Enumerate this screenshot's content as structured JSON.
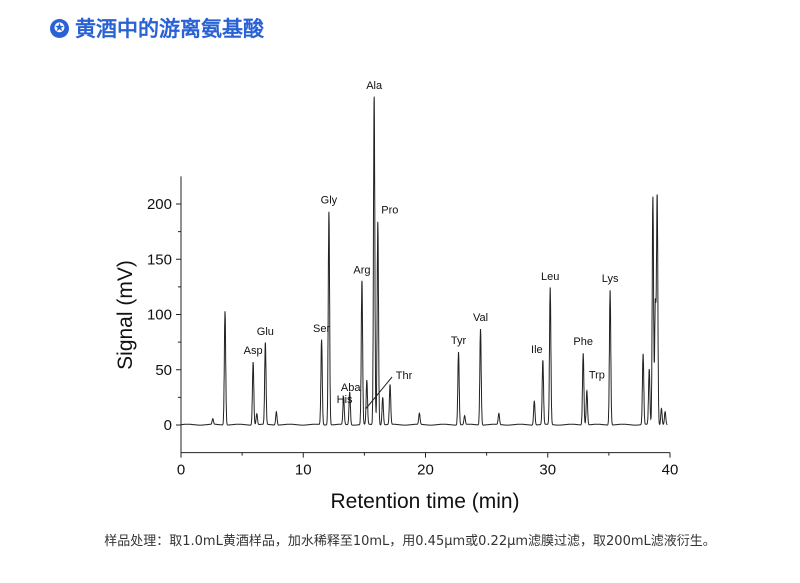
{
  "header": {
    "icon": "star-circle-icon",
    "title": "黄酒中的游离氨基酸"
  },
  "caption": "样品处理：取1.0mL黄酒样品，加水稀释至10mL，用0.45μm或0.22μm滤膜过滤，取200mL滤液衍生。",
  "chart_data": {
    "type": "line",
    "xlabel": "Retention time (min)",
    "ylabel": "Signal (mV)",
    "xlim": [
      0,
      40
    ],
    "ylim": [
      -25,
      225
    ],
    "xticks": [
      0,
      10,
      20,
      30,
      40
    ],
    "yticks": [
      0,
      50,
      100,
      150,
      200
    ],
    "grid": false,
    "line_color": "#222222",
    "peaks": [
      {
        "t": 2.6,
        "v": 5
      },
      {
        "t": 3.6,
        "v": 103
      },
      {
        "t": 5.9,
        "v": 57,
        "label": "Asp"
      },
      {
        "t": 6.2,
        "v": 10
      },
      {
        "t": 6.9,
        "v": 74,
        "label": "Glu"
      },
      {
        "t": 7.8,
        "v": 12
      },
      {
        "t": 11.5,
        "v": 77,
        "label": "Ser"
      },
      {
        "t": 12.1,
        "v": 193,
        "label": "Gly"
      },
      {
        "t": 13.3,
        "v": 25,
        "label": "His"
      },
      {
        "t": 13.8,
        "v": 30,
        "label": "Aba"
      },
      {
        "t": 14.8,
        "v": 130,
        "label": "Arg"
      },
      {
        "t": 15.2,
        "v": 40
      },
      {
        "t": 15.8,
        "v": 297,
        "label": "Ala"
      },
      {
        "t": 16.1,
        "v": 184,
        "label": "Pro"
      },
      {
        "t": 16.5,
        "v": 25
      },
      {
        "t": 17.1,
        "v": 36,
        "label": "Thr"
      },
      {
        "t": 19.5,
        "v": 10
      },
      {
        "t": 22.7,
        "v": 66,
        "label": "Tyr"
      },
      {
        "t": 23.2,
        "v": 8
      },
      {
        "t": 24.5,
        "v": 87,
        "label": "Val"
      },
      {
        "t": 26.0,
        "v": 10
      },
      {
        "t": 28.9,
        "v": 22
      },
      {
        "t": 29.6,
        "v": 58,
        "label": "Ile"
      },
      {
        "t": 30.2,
        "v": 124,
        "label": "Leu"
      },
      {
        "t": 32.9,
        "v": 65,
        "label": "Phe"
      },
      {
        "t": 33.2,
        "v": 31,
        "label": "Trp"
      },
      {
        "t": 35.1,
        "v": 122,
        "label": "Lys"
      },
      {
        "t": 37.8,
        "v": 64
      },
      {
        "t": 38.3,
        "v": 50
      },
      {
        "t": 38.6,
        "v": 206
      },
      {
        "t": 38.8,
        "v": 108
      },
      {
        "t": 38.95,
        "v": 206
      },
      {
        "t": 39.3,
        "v": 15
      },
      {
        "t": 39.6,
        "v": 12
      }
    ]
  }
}
